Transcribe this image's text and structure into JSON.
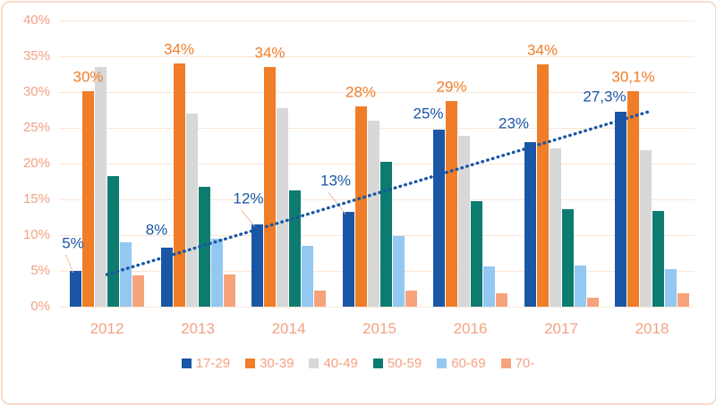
{
  "chart_data": {
    "type": "bar",
    "title": "",
    "categories": [
      "2012",
      "2013",
      "2014",
      "2015",
      "2016",
      "2017",
      "2018"
    ],
    "series": [
      {
        "name": "17-29",
        "color": "#1a56a5",
        "values": [
          5,
          8.3,
          11.5,
          13.2,
          24.8,
          23,
          27.3
        ],
        "labels": [
          "5%",
          "8%",
          "12%",
          "13%",
          "25%",
          "23%",
          "27,3%"
        ],
        "label_color": "#1a56a5",
        "label_offsets": [
          {
            "dx": -3,
            "dy": -31,
            "leader": true
          },
          {
            "dx": -11,
            "dy": -20,
            "leader": false
          },
          {
            "dx": -10,
            "dy": -29,
            "leader": true
          },
          {
            "dx": -14,
            "dy": -35,
            "leader": true
          },
          {
            "dx": -12,
            "dy": -18,
            "leader": false
          },
          {
            "dx": -18,
            "dy": -21,
            "leader": false
          },
          {
            "dx": -18,
            "dy": -17,
            "leader": false
          }
        ]
      },
      {
        "name": "30-39",
        "color": "#f07d28",
        "values": [
          30.1,
          34,
          33.5,
          28,
          28.7,
          33.9,
          30.1
        ],
        "labels": [
          "30%",
          "34%",
          "34%",
          "28%",
          "29%",
          "34%",
          "30,1%"
        ],
        "label_color": "#f07d28"
      },
      {
        "name": "40-49",
        "color": "#d8d8d8",
        "values": [
          33.5,
          27,
          27.8,
          26,
          23.9,
          22.1,
          21.9
        ]
      },
      {
        "name": "50-59",
        "color": "#0d7c70",
        "values": [
          18.2,
          16.8,
          16.3,
          20.3,
          14.8,
          13.6,
          13.4
        ]
      },
      {
        "name": "60-69",
        "color": "#93c8f2",
        "values": [
          9,
          9.5,
          8.5,
          9.9,
          5.6,
          5.8,
          5.2
        ]
      },
      {
        "name": "70-",
        "color": "#f7a47c",
        "values": [
          4.4,
          4.5,
          2.3,
          2.3,
          1.9,
          1.3,
          1.9
        ]
      }
    ],
    "trendline": {
      "for_series": "17-29",
      "type": "linear",
      "style": "dotted",
      "color": "#1a56a5",
      "start_value": 4.5,
      "end_value": 27.4
    },
    "y_axis": {
      "min": 0,
      "max": 40,
      "step": 5,
      "suffix": "%",
      "tick_color": "#f4a183"
    },
    "x_axis": {
      "label_color": "#f4a183"
    },
    "legend": {
      "position": "bottom",
      "text_color": "#f4a183"
    },
    "grid": {
      "show": true,
      "color": "#fae6d6"
    },
    "leader_line_color": "#f1b9a0"
  },
  "frame": {
    "border_color": "#f8dcc9",
    "background": "#ffffff"
  }
}
